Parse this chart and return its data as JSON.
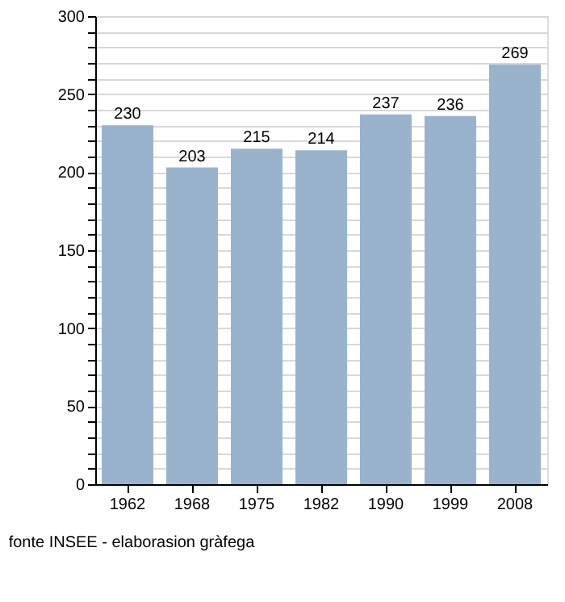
{
  "chart_data": {
    "type": "bar",
    "categories": [
      "1962",
      "1968",
      "1975",
      "1982",
      "1990",
      "1999",
      "2008"
    ],
    "values": [
      230,
      203,
      215,
      214,
      237,
      236,
      269
    ],
    "color": "#9ab3cc",
    "ylim": [
      0,
      300
    ],
    "yticks": [
      0,
      {
        "value": 10,
        "label": null
      },
      {
        "value": 20,
        "label": null
      },
      {
        "value": 30,
        "label": null
      },
      {
        "value": 40,
        "label": null
      },
      50,
      {
        "value": 60,
        "label": null
      },
      {
        "value": 70,
        "label": null
      },
      {
        "value": 80,
        "label": null
      },
      {
        "value": 90,
        "label": null
      },
      100,
      {
        "value": 110,
        "label": null
      },
      {
        "value": 120,
        "label": null
      },
      {
        "value": 130,
        "label": null
      },
      {
        "value": 140,
        "label": null
      },
      150,
      {
        "value": 160,
        "label": null
      },
      {
        "value": 170,
        "label": null
      },
      {
        "value": 180,
        "label": null
      },
      {
        "value": 190,
        "label": null
      },
      200,
      {
        "value": 210,
        "label": null
      },
      {
        "value": 220,
        "label": null
      },
      {
        "value": 230,
        "label": null
      },
      {
        "value": 240,
        "label": null
      },
      250,
      {
        "value": 260,
        "label": null
      },
      {
        "value": 270,
        "label": null
      },
      {
        "value": 280,
        "label": null
      },
      {
        "value": 290,
        "label": null
      },
      300
    ],
    "grid": "y",
    "data_labels": true,
    "annotations": [
      "fonte INSEE - elaborasion gràfega"
    ]
  }
}
